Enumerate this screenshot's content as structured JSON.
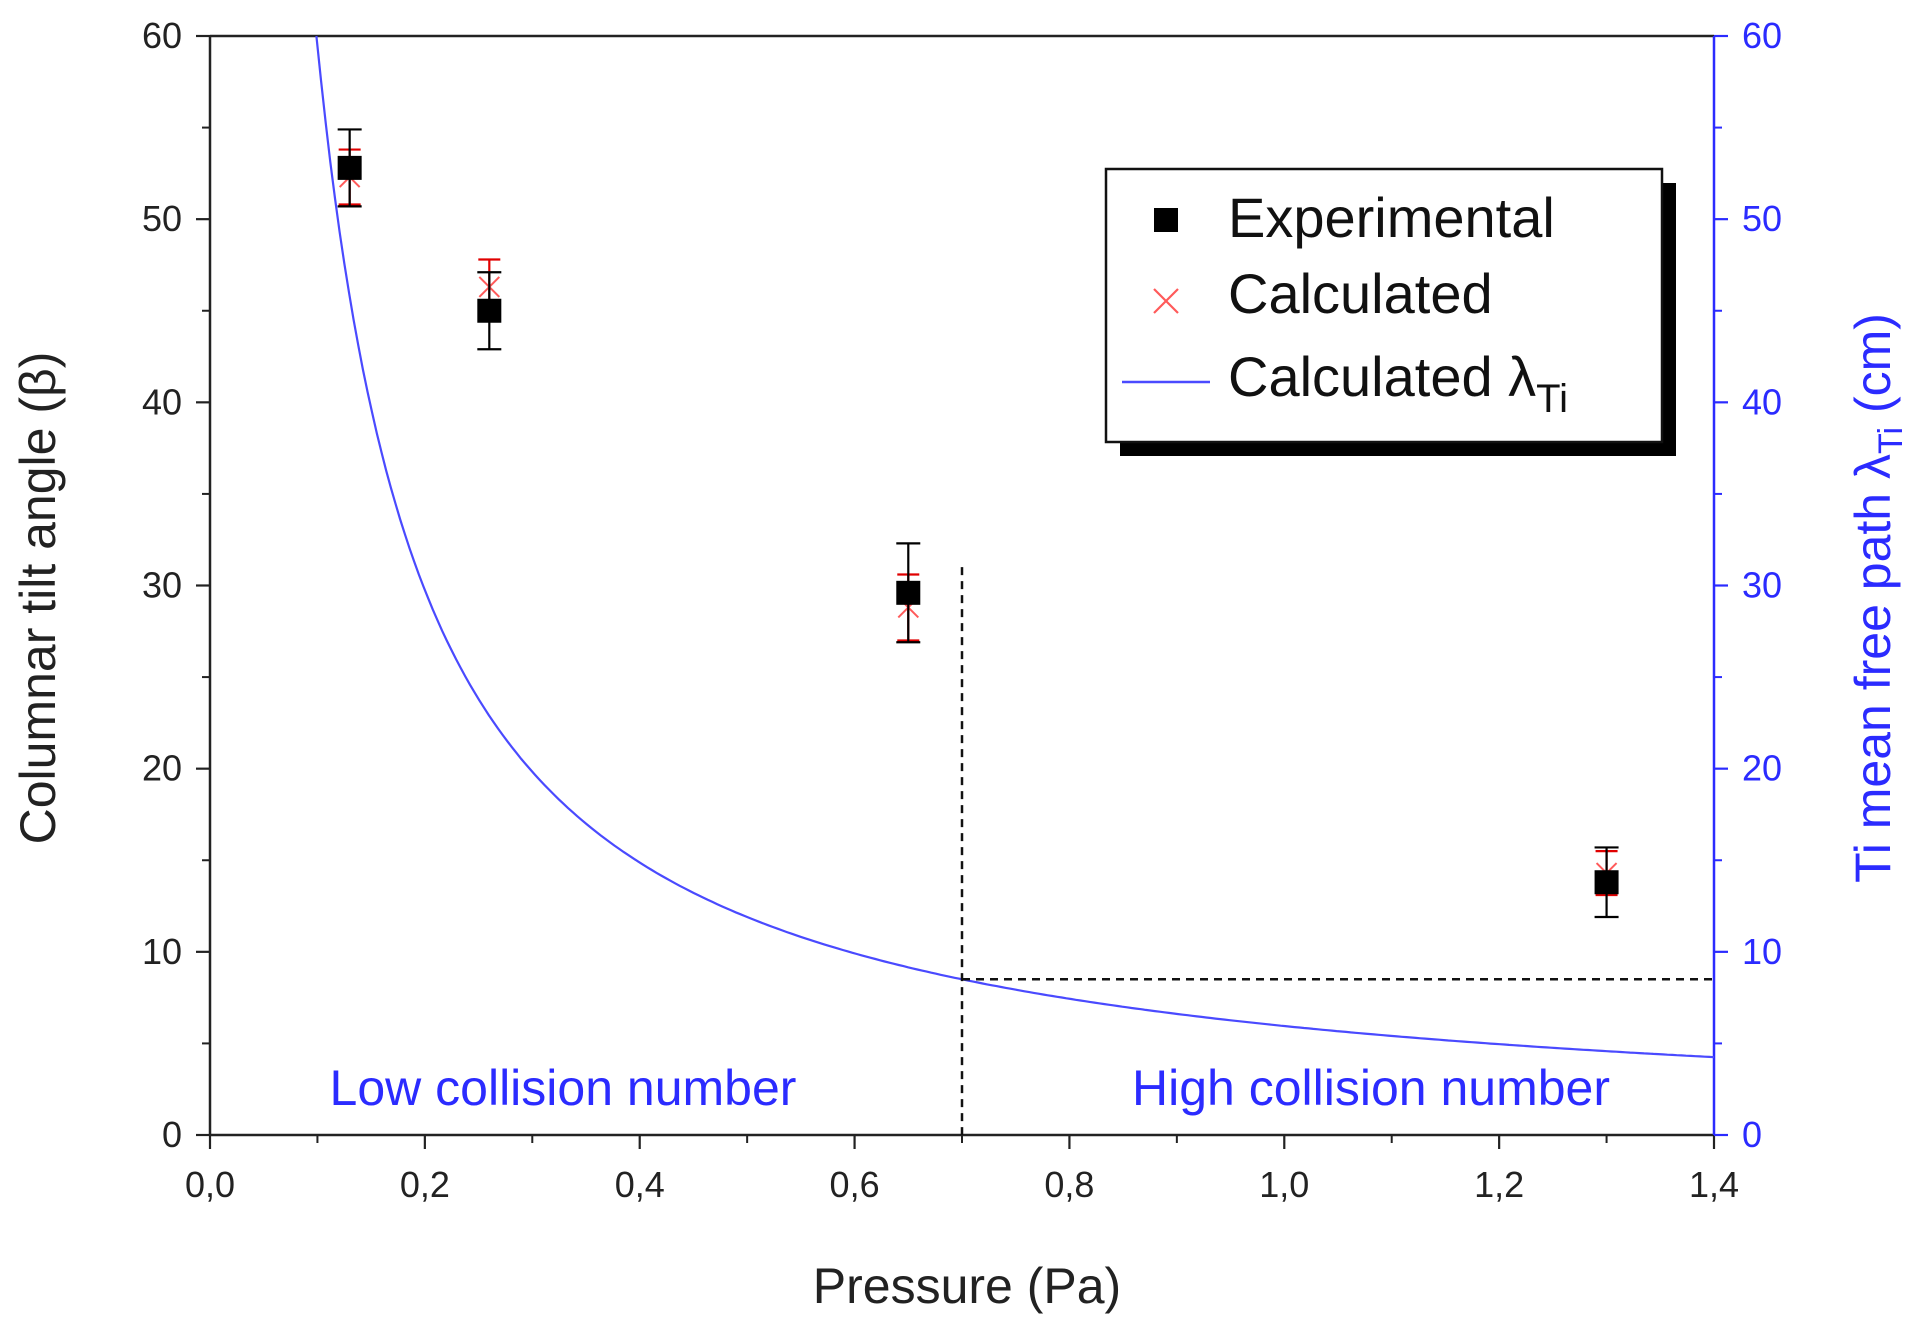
{
  "chart_data": {
    "type": "scatter",
    "xlabel": "Pressure (Pa)",
    "ylabel": "Columnar tilt angle (β)",
    "y2label_main": "Ti mean free path λ",
    "y2label_sub": "Ti",
    "y2label_unit": " (cm)",
    "xlim": [
      0.0,
      1.4
    ],
    "ylim": [
      0,
      60
    ],
    "y2lim": [
      0,
      60
    ],
    "x_ticks": [
      0.0,
      0.2,
      0.4,
      0.6,
      0.8,
      1.0,
      1.2,
      1.4
    ],
    "x_tick_labels": [
      "0,0",
      "0,2",
      "0,4",
      "0,6",
      "0,8",
      "1,0",
      "1,2",
      "1,4"
    ],
    "y_ticks": [
      0,
      10,
      20,
      30,
      40,
      50,
      60
    ],
    "y_tick_labels": [
      "0",
      "10",
      "20",
      "30",
      "40",
      "50",
      "60"
    ],
    "y2_ticks": [
      0,
      10,
      20,
      30,
      40,
      50,
      60
    ],
    "y2_tick_labels": [
      "0",
      "10",
      "20",
      "30",
      "40",
      "50",
      "60"
    ],
    "grid": false,
    "legend_position": "top-right",
    "legend": {
      "experimental": "Experimental",
      "calculated": "Calculated",
      "lambda_main": "Calculated λ",
      "lambda_sub": "Ti"
    },
    "series": [
      {
        "name": "Experimental",
        "kind": "scatter",
        "marker": "square",
        "color": "#000000",
        "x": [
          0.13,
          0.26,
          0.65,
          1.3
        ],
        "y": [
          52.8,
          45.0,
          29.6,
          13.8
        ],
        "yerr": [
          2.1,
          2.1,
          2.7,
          1.9
        ]
      },
      {
        "name": "Calculated",
        "kind": "scatter",
        "marker": "x",
        "color": "#ff5a5a",
        "x": [
          0.13,
          0.26,
          0.65,
          1.3
        ],
        "y": [
          52.3,
          46.3,
          28.8,
          14.3
        ],
        "yerr": [
          1.5,
          1.5,
          1.8,
          1.2
        ]
      },
      {
        "name": "Calculated λTi",
        "kind": "line",
        "axis": "right",
        "color": "#4a4aff",
        "formula": "lambda = 5.95 / p",
        "x_range": [
          0.099,
          1.4
        ]
      }
    ],
    "annotations": {
      "low_region": "Low collision number",
      "high_region": "High collision number",
      "threshold_x": 0.7,
      "threshold_y_top": 31,
      "threshold_lambda": 8.5
    },
    "colors": {
      "axis_left": "#222222",
      "axis_right": "#2b2bff",
      "lambda_line": "#4a4aff",
      "calculated_marker": "#ff5a5a",
      "error_bar_red": "#e00000"
    }
  }
}
